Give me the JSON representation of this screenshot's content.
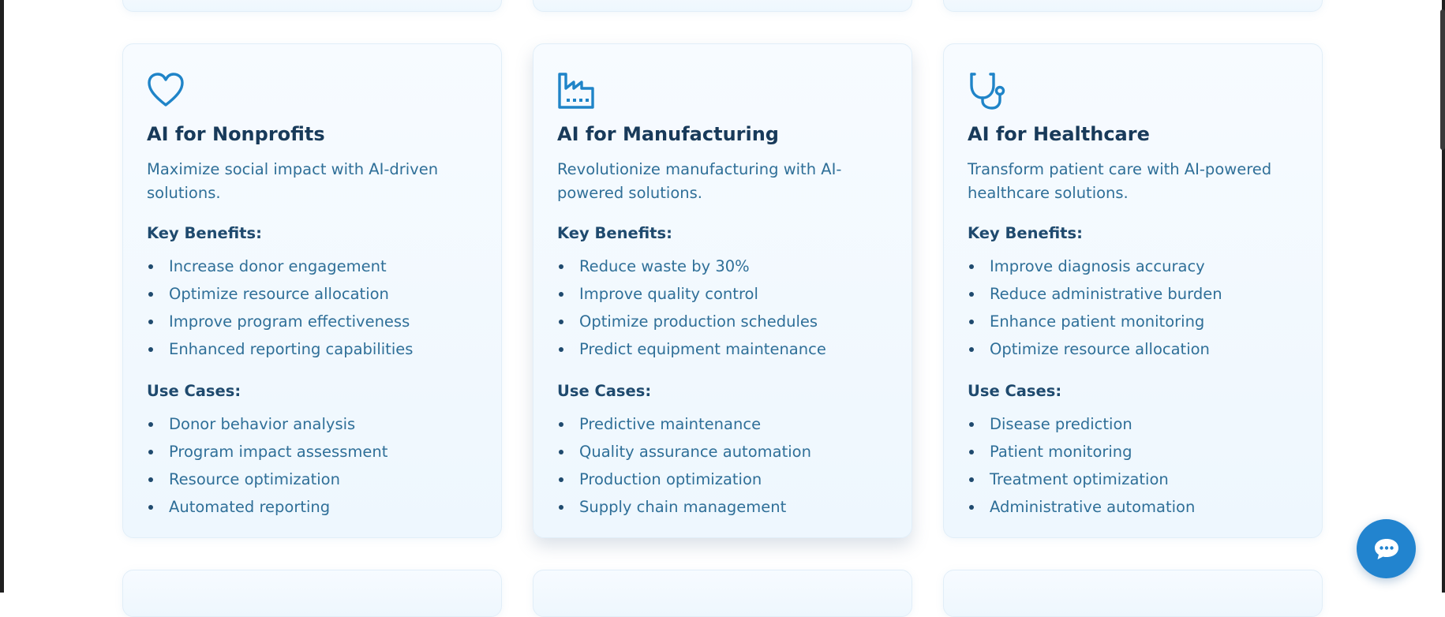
{
  "cards": [
    {
      "title": "AI for Nonprofits",
      "icon": "heart-icon",
      "description": "Maximize social impact with AI-driven solutions.",
      "benefits_heading": "Key Benefits:",
      "benefits": [
        "Increase donor engagement",
        "Optimize resource allocation",
        "Improve program effectiveness",
        "Enhanced reporting capabilities"
      ],
      "use_cases_heading": "Use Cases:",
      "use_cases": [
        "Donor behavior analysis",
        "Program impact assessment",
        "Resource optimization",
        "Automated reporting"
      ]
    },
    {
      "title": "AI for Manufacturing",
      "icon": "factory-icon",
      "description": "Revolutionize manufacturing with AI-powered solutions.",
      "benefits_heading": "Key Benefits:",
      "benefits": [
        "Reduce waste by 30%",
        "Improve quality control",
        "Optimize production schedules",
        "Predict equipment maintenance"
      ],
      "use_cases_heading": "Use Cases:",
      "use_cases": [
        "Predictive maintenance",
        "Quality assurance automation",
        "Production optimization",
        "Supply chain management"
      ]
    },
    {
      "title": "AI for Healthcare",
      "icon": "stethoscope-icon",
      "description": "Transform patient care with AI-powered healthcare solutions.",
      "benefits_heading": "Key Benefits:",
      "benefits": [
        "Improve diagnosis accuracy",
        "Reduce administrative burden",
        "Enhance patient monitoring",
        "Optimize resource allocation"
      ],
      "use_cases_heading": "Use Cases:",
      "use_cases": [
        "Disease prediction",
        "Patient monitoring",
        "Treatment optimization",
        "Administrative automation"
      ]
    }
  ],
  "chat_button": {
    "icon": "chat-bubble-icon"
  },
  "colors": {
    "accent": "#2284cf",
    "title": "#183a5a",
    "text": "#2f6f98",
    "card_bg": "#f2f9ff"
  }
}
